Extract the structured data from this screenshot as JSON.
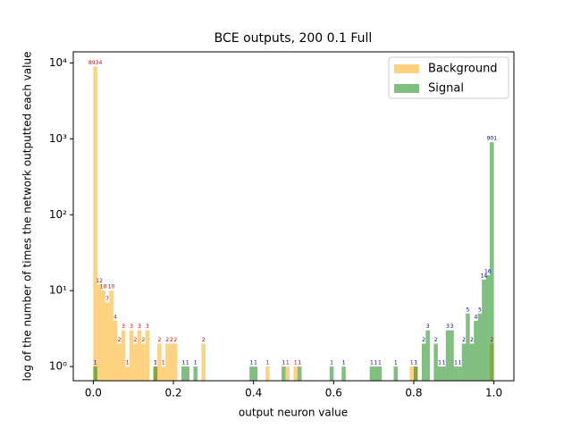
{
  "chart_data": {
    "type": "histogram",
    "title": "BCE outputs, 200 0.1 Full",
    "xlabel": "output neuron value",
    "ylabel": "log of the number of times the network outputted each value",
    "bins": [
      0,
      0.01,
      0.02,
      0.03,
      0.04,
      0.05,
      0.06,
      0.07,
      0.08,
      0.09,
      0.1,
      0.11,
      0.12,
      0.13,
      0.14,
      0.15,
      0.16,
      0.17,
      0.18,
      0.19,
      0.2,
      0.21,
      0.22,
      0.23,
      0.24,
      0.25,
      0.26,
      0.27,
      0.28,
      0.29,
      0.3,
      0.31,
      0.32,
      0.33,
      0.34,
      0.35,
      0.36,
      0.37,
      0.38,
      0.39,
      0.4,
      0.41,
      0.42,
      0.43,
      0.44,
      0.45,
      0.46,
      0.47,
      0.48,
      0.49,
      0.5,
      0.51,
      0.52,
      0.53,
      0.54,
      0.55,
      0.56,
      0.57,
      0.58,
      0.59,
      0.6,
      0.61,
      0.62,
      0.63,
      0.64,
      0.65,
      0.66,
      0.67,
      0.68,
      0.69,
      0.7,
      0.71,
      0.72,
      0.73,
      0.74,
      0.75,
      0.76,
      0.77,
      0.78,
      0.79,
      0.8,
      0.81,
      0.82,
      0.83,
      0.84,
      0.85,
      0.86,
      0.87,
      0.88,
      0.89,
      0.9,
      0.91,
      0.92,
      0.93,
      0.94,
      0.95,
      0.96,
      0.97,
      0.98,
      0.99,
      1
    ],
    "series": [
      {
        "name": "Background",
        "color": "#ffa500",
        "label_color": "#d00000",
        "values": [
          8934,
          12,
          10,
          7,
          10,
          4,
          2,
          3,
          1,
          3,
          2,
          3,
          2,
          3,
          0,
          1,
          2,
          1,
          2,
          2,
          2,
          0,
          0,
          0,
          0,
          0,
          0,
          2,
          0,
          0,
          0,
          0,
          0,
          0,
          0,
          0,
          0,
          0,
          0,
          0,
          0,
          0,
          0,
          1,
          0,
          0,
          0,
          0,
          1,
          0,
          1,
          0,
          0,
          0,
          0,
          0,
          0,
          0,
          0,
          0,
          0,
          0,
          0,
          0,
          0,
          0,
          0,
          0,
          0,
          0,
          0,
          0,
          0,
          0,
          0,
          0,
          0,
          0,
          0,
          1,
          1,
          0,
          0,
          0,
          0,
          0,
          0,
          0,
          0,
          0,
          0,
          0,
          0,
          0,
          0,
          0,
          0,
          0,
          0,
          2
        ]
      },
      {
        "name": "Signal",
        "color": "#008000",
        "label_color": "#0000c0",
        "values": [
          1,
          0,
          0,
          0,
          0,
          0,
          0,
          0,
          0,
          0,
          0,
          0,
          0,
          0,
          0,
          1,
          0,
          0,
          0,
          0,
          0,
          0,
          1,
          1,
          0,
          1,
          0,
          0,
          0,
          0,
          0,
          0,
          0,
          0,
          0,
          0,
          0,
          0,
          0,
          1,
          1,
          0,
          0,
          0,
          0,
          0,
          0,
          1,
          0,
          0,
          0,
          1,
          0,
          0,
          0,
          0,
          0,
          0,
          0,
          1,
          0,
          0,
          1,
          0,
          0,
          0,
          0,
          0,
          0,
          1,
          1,
          1,
          0,
          0,
          0,
          1,
          0,
          0,
          0,
          0,
          1,
          0,
          2,
          3,
          0,
          2,
          1,
          1,
          3,
          3,
          1,
          1,
          2,
          5,
          2,
          4,
          5,
          14,
          16,
          901
        ]
      }
    ],
    "xlim": [
      -0.05,
      1.05
    ],
    "xticks": [
      {
        "value": 0,
        "label": "0.0"
      },
      {
        "value": 0.2,
        "label": "0.2"
      },
      {
        "value": 0.4,
        "label": "0.4"
      },
      {
        "value": 0.6,
        "label": "0.6"
      },
      {
        "value": 0.8,
        "label": "0.8"
      },
      {
        "value": 1,
        "label": "1.0"
      }
    ],
    "ylim": [
      0.65,
      14000
    ],
    "yticks": [
      {
        "value": 1,
        "label": "10⁰"
      },
      {
        "value": 10,
        "label": "10¹"
      },
      {
        "value": 100,
        "label": "10²"
      },
      {
        "value": 1000,
        "label": "10³"
      },
      {
        "value": 10000,
        "label": "10⁴"
      }
    ],
    "log_y": true,
    "opacity": 0.5,
    "legend": "upper right"
  }
}
